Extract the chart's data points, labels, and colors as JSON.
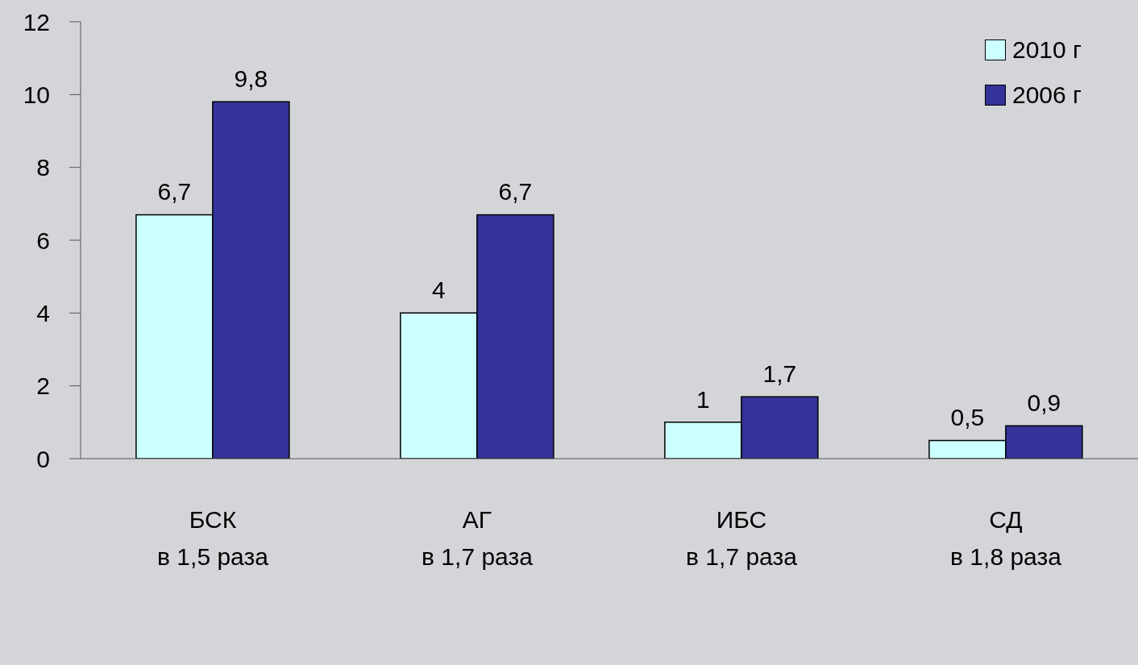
{
  "chart_data": {
    "type": "bar",
    "categories": [
      "БСК\nв 1,5 раза",
      "АГ\nв 1,7 раза",
      "ИБС\nв 1,7 раза",
      "СД\nв 1,8 раза"
    ],
    "series": [
      {
        "name": "2010 г",
        "color": "#ccffff",
        "values": [
          6.7,
          4,
          1,
          0.5
        ],
        "value_labels": [
          "6,7",
          "4",
          "1",
          "0,5"
        ]
      },
      {
        "name": "2006 г",
        "color": "#333399",
        "values": [
          9.8,
          6.7,
          1.7,
          0.9
        ],
        "value_labels": [
          "9,8",
          "6,7",
          "1,7",
          "0,9"
        ]
      }
    ],
    "ylim": [
      0,
      12
    ],
    "yticks": [
      0,
      2,
      4,
      6,
      8,
      10,
      12
    ],
    "grid": false,
    "legend": "top right"
  }
}
